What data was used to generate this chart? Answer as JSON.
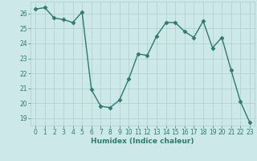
{
  "x": [
    0,
    1,
    2,
    3,
    4,
    5,
    6,
    7,
    8,
    9,
    10,
    11,
    12,
    13,
    14,
    15,
    16,
    17,
    18,
    19,
    20,
    21,
    22,
    23
  ],
  "y": [
    26.3,
    26.4,
    25.7,
    25.6,
    25.4,
    26.1,
    20.9,
    19.8,
    19.7,
    20.2,
    21.6,
    23.3,
    23.2,
    24.5,
    25.4,
    25.4,
    24.8,
    24.4,
    25.5,
    23.7,
    24.4,
    22.2,
    20.1,
    18.7
  ],
  "line_color": "#2d7a6e",
  "marker": "D",
  "markersize": 2.5,
  "linewidth": 1.0,
  "xlabel": "Humidex (Indice chaleur)",
  "xlim": [
    -0.5,
    23.5
  ],
  "ylim_min": 18.5,
  "ylim_max": 26.8,
  "yticks": [
    19,
    20,
    21,
    22,
    23,
    24,
    25,
    26
  ],
  "xticks": [
    0,
    1,
    2,
    3,
    4,
    5,
    6,
    7,
    8,
    9,
    10,
    11,
    12,
    13,
    14,
    15,
    16,
    17,
    18,
    19,
    20,
    21,
    22,
    23
  ],
  "bg_color": "#cce8e8",
  "grid_color": "#b0cccc",
  "tick_fontsize": 5.5,
  "xlabel_fontsize": 6.5,
  "xlabel_fontweight": "bold",
  "tick_color": "#2d7a6e",
  "xlabel_color": "#2d7a6e"
}
